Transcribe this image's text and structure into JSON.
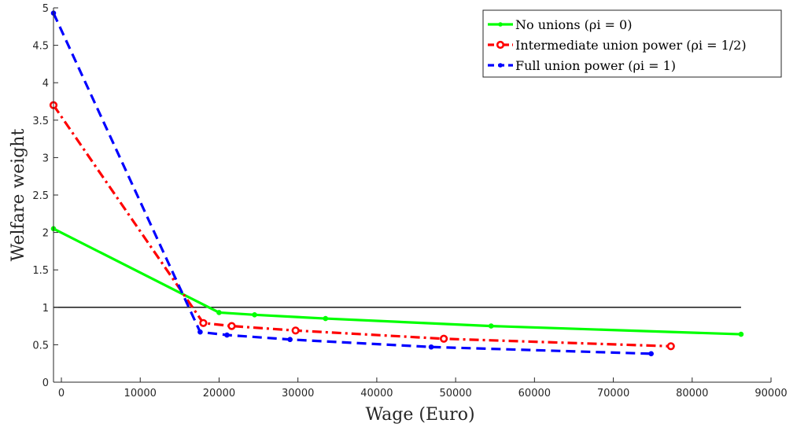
{
  "chart_data": {
    "type": "line",
    "xlabel": "Wage (Euro)",
    "ylabel": "Welfare weight",
    "xlim": [
      -1000,
      90000
    ],
    "ylim": [
      0,
      5
    ],
    "xticks": [
      0,
      10000,
      20000,
      30000,
      40000,
      50000,
      60000,
      70000,
      80000,
      90000
    ],
    "xtick_labels": [
      "0",
      "10000",
      "20000",
      "30000",
      "40000",
      "50000",
      "60000",
      "70000",
      "80000",
      "90000"
    ],
    "yticks": [
      0,
      0.5,
      1,
      1.5,
      2,
      2.5,
      3,
      3.5,
      4,
      4.5,
      5
    ],
    "ytick_labels": [
      "0",
      "0.5",
      "1",
      "1.5",
      "2",
      "2.5",
      "3",
      "3.5",
      "4",
      "4.5",
      "5"
    ],
    "grid": false,
    "legend_position": "top-right",
    "reference_line": {
      "y": 1,
      "x_from": -1000,
      "x_to": 86200,
      "color": "#000000"
    },
    "series": [
      {
        "name": "No unions (ρi = 0)",
        "color": "#00ff00",
        "style": "solid",
        "marker": "dot",
        "x": [
          -1000,
          20000,
          24500,
          33500,
          54500,
          86200
        ],
        "y": [
          2.05,
          0.93,
          0.9,
          0.85,
          0.75,
          0.64
        ]
      },
      {
        "name": "Intermediate union power (ρi = 1/2)",
        "color": "#ff0000",
        "style": "dashdot",
        "marker": "circle",
        "x": [
          -1000,
          18000,
          21600,
          29700,
          48500,
          77300
        ],
        "y": [
          3.7,
          0.79,
          0.75,
          0.69,
          0.58,
          0.48
        ]
      },
      {
        "name": "Full union power (ρi = 1)",
        "color": "#0000ff",
        "style": "dashed",
        "marker": "dot",
        "x": [
          -1000,
          17600,
          21000,
          29000,
          46900,
          74800
        ],
        "y": [
          4.93,
          0.67,
          0.63,
          0.57,
          0.47,
          0.38
        ]
      }
    ]
  }
}
